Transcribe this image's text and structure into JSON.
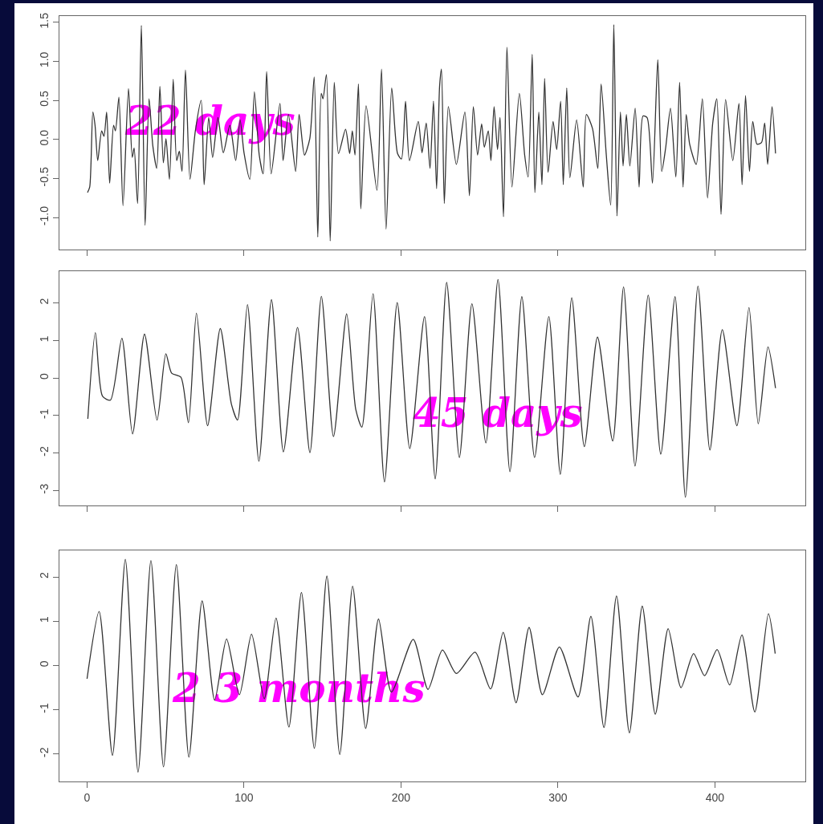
{
  "chart_data": [
    {
      "type": "line",
      "annotations": [
        "22 days"
      ],
      "xlim": [
        -17.6,
        457.6
      ],
      "xticks": [
        0,
        100,
        200,
        300,
        400
      ],
      "ylim": [
        -1.41,
        1.58
      ],
      "yticks": [
        {
          "value": -1,
          "label": "-1.0"
        },
        {
          "value": -0.5,
          "label": "-0.5"
        },
        {
          "value": 0,
          "label": "0.0"
        },
        {
          "value": 0.5,
          "label": "0.5"
        },
        {
          "value": 1,
          "label": "1.0"
        },
        {
          "value": 1.5,
          "label": "1.5"
        }
      ],
      "tick_labels": "y",
      "series": [
        {
          "color": "#333333",
          "x": [
            0.3,
            1.7,
            3.7,
            5.1,
            6.8,
            9.3,
            10.8,
            12.5,
            14.4,
            16.9,
            18.1,
            20.3,
            22.9,
            26.4,
            28.8,
            30.0,
            32.2,
            34.6,
            37.0,
            39.5,
            41.9,
            44.4,
            46.4,
            48.6,
            50.3,
            52.5,
            54.9,
            57.1,
            58.8,
            60.5,
            62.7,
            65.6,
            69.0,
            72.7,
            74.6,
            77.5,
            80.0,
            83.4,
            86.8,
            91.0,
            94.7,
            97.5,
            100.0,
            103.7,
            106.6,
            109.7,
            112.2,
            114.4,
            117.3,
            122.9,
            124.9,
            128.3,
            132.9,
            135.1,
            138.5,
            141.9,
            144.7,
            147.0,
            149.2,
            150.3,
            152.5,
            154.9,
            157.5,
            160.2,
            164.7,
            167.3,
            169.0,
            170.7,
            172.9,
            174.4,
            177.8,
            184.7,
            187.6,
            190.5,
            194.1,
            197.8,
            200.3,
            202.9,
            205.4,
            211.0,
            213.4,
            216.1,
            218.5,
            220.7,
            222.7,
            224.6,
            225.8,
            227.6,
            230.2,
            235.3,
            240.7,
            243.6,
            246.1,
            248.8,
            251.4,
            253.1,
            255.6,
            257.3,
            259.3,
            261.5,
            263.1,
            265.3,
            267.5,
            270.7,
            275.4,
            278.8,
            281.0,
            283.6,
            285.3,
            287.8,
            289.8,
            291.5,
            293.7,
            296.9,
            299.2,
            301.7,
            303.4,
            305.6,
            307.6,
            311.9,
            316.1,
            318.1,
            322.0,
            325.4,
            327.5,
            330.8,
            333.6,
            335.6,
            337.6,
            339.8,
            341.5,
            343.6,
            345.8,
            349.2,
            351.7,
            354.2,
            356.8,
            360.2,
            363.6,
            366.1,
            368.6,
            371.7,
            375.1,
            377.5,
            379.7,
            381.7,
            383.9,
            388.1,
            392.0,
            395.3,
            398.6,
            401.2,
            403.9,
            406.8,
            411.4,
            415.3,
            417.3,
            419.5,
            422.0,
            424.1,
            426.8,
            429.7,
            431.7,
            433.6,
            436.4,
            438.6
          ],
          "values": [
            -0.68,
            -0.61,
            0.35,
            0.18,
            -0.27,
            0.11,
            0.04,
            0.35,
            -0.56,
            0.18,
            0.11,
            0.54,
            -0.85,
            0.65,
            -0.23,
            -0.11,
            -0.82,
            1.46,
            -1.1,
            0.52,
            -0.08,
            -0.37,
            0.68,
            -0.3,
            0.01,
            -0.51,
            0.77,
            -0.27,
            -0.15,
            -0.41,
            0.89,
            -0.51,
            0.11,
            0.5,
            -0.58,
            0.28,
            -0.23,
            0.28,
            -0.17,
            0.18,
            -0.27,
            0.25,
            -0.17,
            -0.51,
            0.61,
            -0.2,
            -0.44,
            0.87,
            -0.44,
            0.46,
            -0.27,
            0.32,
            -0.41,
            0.32,
            -0.2,
            0.01,
            0.8,
            -1.25,
            0.59,
            0.52,
            0.83,
            -1.3,
            0.73,
            -0.18,
            0.13,
            -0.18,
            0.11,
            -0.2,
            0.71,
            -0.89,
            0.43,
            -0.65,
            0.9,
            -1.15,
            0.66,
            -0.18,
            -0.25,
            0.49,
            -0.27,
            0.23,
            -0.17,
            0.21,
            -0.37,
            0.49,
            -0.63,
            0.68,
            0.9,
            -0.82,
            0.42,
            -0.32,
            0.35,
            -0.72,
            0.42,
            -0.2,
            0.2,
            -0.1,
            0.11,
            -0.27,
            0.42,
            -0.13,
            0.28,
            -0.99,
            1.18,
            -0.61,
            0.59,
            -0.2,
            -0.48,
            1.09,
            -0.68,
            0.35,
            -0.58,
            0.78,
            -0.42,
            0.23,
            -0.13,
            0.49,
            -0.58,
            0.66,
            -0.49,
            0.25,
            -0.61,
            0.32,
            0.14,
            -0.37,
            0.71,
            -0.2,
            -0.84,
            1.47,
            -0.98,
            0.35,
            -0.34,
            0.32,
            -0.34,
            0.4,
            -0.61,
            0.3,
            0.28,
            -0.56,
            1.02,
            -0.41,
            -0.11,
            0.4,
            -0.48,
            0.73,
            -0.61,
            0.32,
            -0.06,
            -0.32,
            0.52,
            -0.75,
            0.21,
            0.52,
            -0.96,
            0.51,
            -0.27,
            0.46,
            -0.58,
            0.56,
            -0.41,
            0.23,
            -0.06,
            -0.04,
            0.21,
            -0.32,
            0.42,
            -0.18
          ]
        }
      ]
    },
    {
      "type": "line",
      "annotations": [
        "45 days"
      ],
      "xlim": [
        -17.6,
        457.6
      ],
      "xticks": [
        0,
        100,
        200,
        300,
        400
      ],
      "ylim": [
        -3.4,
        2.85
      ],
      "yticks": [
        -3,
        -2,
        -1,
        0,
        1,
        2
      ],
      "tick_labels": "y",
      "series": [
        {
          "color": "#333333",
          "x": [
            0.5,
            5.3,
            9.8,
            14.9,
            22.2,
            29.0,
            36.6,
            44.6,
            50.2,
            53.9,
            59.8,
            64.6,
            69.7,
            76.8,
            84.9,
            92.0,
            95.9,
            102.2,
            109.5,
            117.5,
            125.1,
            134.1,
            142.0,
            149.3,
            157.0,
            165.4,
            171.2,
            175.1,
            182.2,
            189.5,
            197.6,
            205.6,
            215.0,
            221.8,
            229.1,
            237.2,
            245.2,
            254.1,
            261.8,
            269.4,
            277.0,
            285.1,
            294.2,
            301.5,
            308.8,
            316.8,
            325.2,
            334.9,
            341.8,
            349.1,
            357.5,
            365.5,
            374.6,
            381.2,
            389.2,
            396.8,
            404.7,
            414.0,
            421.7,
            427.6,
            433.8,
            438.6
          ],
          "values": [
            -1.09,
            1.21,
            -0.48,
            -0.59,
            1.06,
            -1.49,
            1.17,
            -1.12,
            0.65,
            0.13,
            0.02,
            -1.19,
            1.73,
            -1.27,
            1.32,
            -0.7,
            -1.12,
            1.96,
            -2.22,
            2.09,
            -1.97,
            1.35,
            -1.99,
            2.18,
            -1.56,
            1.71,
            -0.84,
            -1.31,
            2.25,
            -2.77,
            2.01,
            -1.88,
            1.64,
            -2.69,
            2.55,
            -2.12,
            1.98,
            -1.73,
            2.63,
            -2.5,
            2.17,
            -2.12,
            1.64,
            -2.57,
            2.14,
            -1.83,
            1.09,
            -1.68,
            2.43,
            -2.35,
            2.21,
            -2.03,
            2.17,
            -3.18,
            2.45,
            -1.92,
            1.29,
            -1.27,
            1.88,
            -1.22,
            0.83,
            -0.27
          ]
        }
      ]
    },
    {
      "type": "line",
      "annotations": [
        "2 3 months"
      ],
      "xlim": [
        -17.6,
        457.6
      ],
      "xticks": [
        0,
        100,
        200,
        300,
        400
      ],
      "ylim": [
        -2.62,
        2.6
      ],
      "yticks": [
        -2,
        -1,
        0,
        1,
        2
      ],
      "series": [
        {
          "color": "#333333",
          "x": [
            0,
            7.7,
            16.2,
            24.4,
            32.5,
            40.7,
            48.7,
            56.9,
            64.9,
            73.3,
            81.3,
            88.9,
            97.1,
            104.8,
            112.9,
            120.4,
            128.6,
            136.6,
            144.8,
            152.8,
            161.0,
            169.2,
            177.5,
            185.7,
            193.9,
            207.8,
            217.2,
            226.4,
            235.3,
            247.2,
            257.1,
            265.1,
            273.3,
            281.6,
            290.1,
            300.9,
            312.8,
            321.0,
            329.3,
            337.3,
            345.5,
            353.7,
            362.0,
            370.2,
            378.4,
            386.4,
            393.4,
            401.4,
            409.4,
            417.2,
            425.4,
            434.1,
            438.4
          ],
          "values": [
            -0.3,
            1.22,
            -2.03,
            2.4,
            -2.41,
            2.37,
            -2.29,
            2.28,
            -2.07,
            1.46,
            -0.78,
            0.6,
            -0.66,
            0.71,
            -0.75,
            1.07,
            -1.39,
            1.65,
            -1.87,
            2.02,
            -2.01,
            1.79,
            -1.42,
            1.05,
            -0.6,
            0.59,
            -0.54,
            0.35,
            -0.18,
            0.3,
            -0.53,
            0.75,
            -0.84,
            0.86,
            -0.66,
            0.42,
            -0.71,
            1.11,
            -1.4,
            1.57,
            -1.52,
            1.34,
            -1.1,
            0.83,
            -0.5,
            0.27,
            -0.23,
            0.36,
            -0.44,
            0.69,
            -1.05,
            1.17,
            0.27
          ]
        }
      ]
    }
  ]
}
